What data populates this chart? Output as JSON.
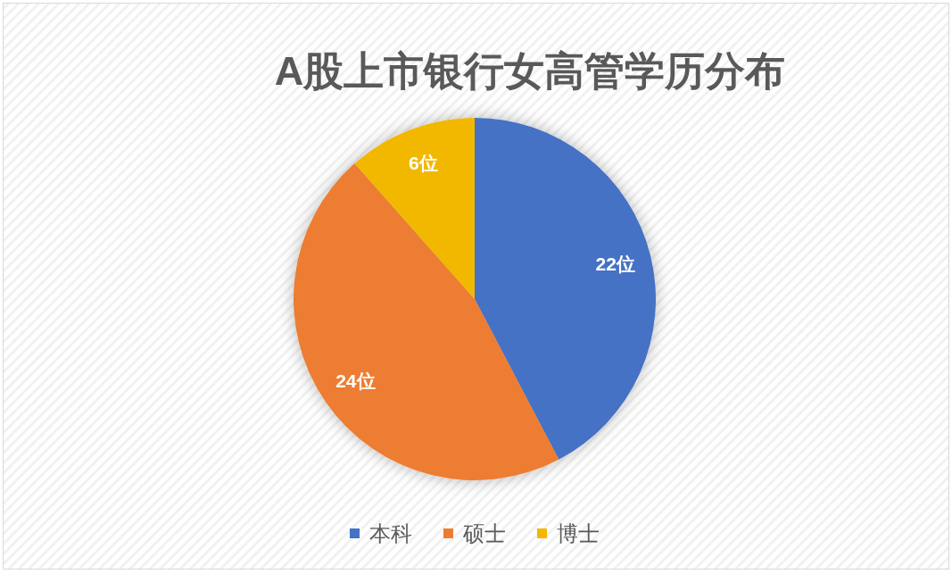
{
  "chart_data": {
    "type": "pie",
    "title": "A股上市银行女高管学历分布",
    "categories": [
      "本科",
      "硕士",
      "博士"
    ],
    "values": [
      22,
      24,
      6
    ],
    "colors": [
      "#4472c4",
      "#ed7d31",
      "#f2b800"
    ],
    "value_labels": [
      "22位",
      "24位",
      "6位"
    ],
    "legend": "bottom"
  }
}
